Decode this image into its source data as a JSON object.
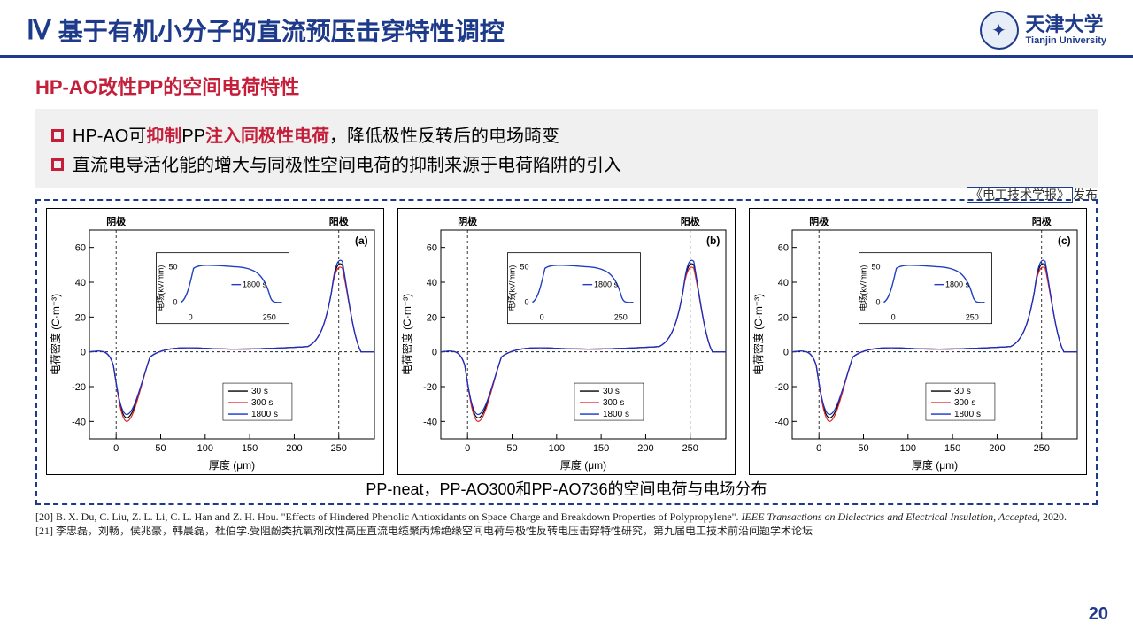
{
  "header": {
    "numeral": "Ⅳ",
    "title": "基于有机小分子的直流预压击穿特性调控",
    "logo_cn": "天津大学",
    "logo_en": "Tianjin University"
  },
  "subtitle": "HP-AO改性PP的空间电荷特性",
  "box": {
    "line1_pre": "HP-AO可",
    "line1_red1": "抑制",
    "line1_mid": "PP",
    "line1_red2": "注入同极性电荷",
    "line1_post": "，降低极性反转后的电场畸变",
    "line2": "直流电导活化能的增大与同极性空间电荷的抑制来源于电荷陷阱的引入"
  },
  "note_box": "《电工技术学报》",
  "note_suffix": "发布",
  "charts": {
    "electrode_left": "阴极",
    "electrode_right": "阳极",
    "ylabel_main": "电荷密度 (C·m⁻³)",
    "xlabel_main": "厚度 (μm)",
    "ylabel_inset": "电场(kV/mm)",
    "inset_label": "1800 s",
    "y_ticks_main": [
      "-40",
      "-20",
      "0",
      "20",
      "40",
      "60"
    ],
    "x_ticks_main": [
      "0",
      "50",
      "100",
      "150",
      "200",
      "250"
    ],
    "x_ticks_inset": [
      "0",
      "250"
    ],
    "y_ticks_inset": [
      "0",
      "50"
    ],
    "legend": [
      "30 s",
      "300 s",
      "1800 s"
    ],
    "legend_colors": [
      "#000000",
      "#e02020",
      "#1030d0"
    ],
    "panel_labels": [
      "(a)",
      "(b)",
      "(c)"
    ],
    "line_color": "#2040c0",
    "main_curve_neg_peak": -38,
    "main_curve_pos_peak": 52
  },
  "caption": "PP-neat，PP-AO300和PP-AO736的空间电荷与电场分布",
  "refs": {
    "r20": "[20] B. X. Du, C. Liu, Z. L. Li, C. L. Han and Z. H. Hou. \"Effects of Hindered Phenolic Antioxidants on Space Charge and Breakdown Properties of Polypropylene\". ",
    "r20_ital": "IEEE Transactions on Dielectrics and Electrical Insulation, Accepted",
    "r20_post": ", 2020.",
    "r21": "[21] 李忠磊，刘畅，侯兆豪，韩晨磊，杜伯学.受阻酚类抗氧剂改性高压直流电缆聚丙烯绝缘空间电荷与极性反转电压击穿特性研究，第九届电工技术前沿问题学术论坛"
  },
  "pagenum": "20"
}
